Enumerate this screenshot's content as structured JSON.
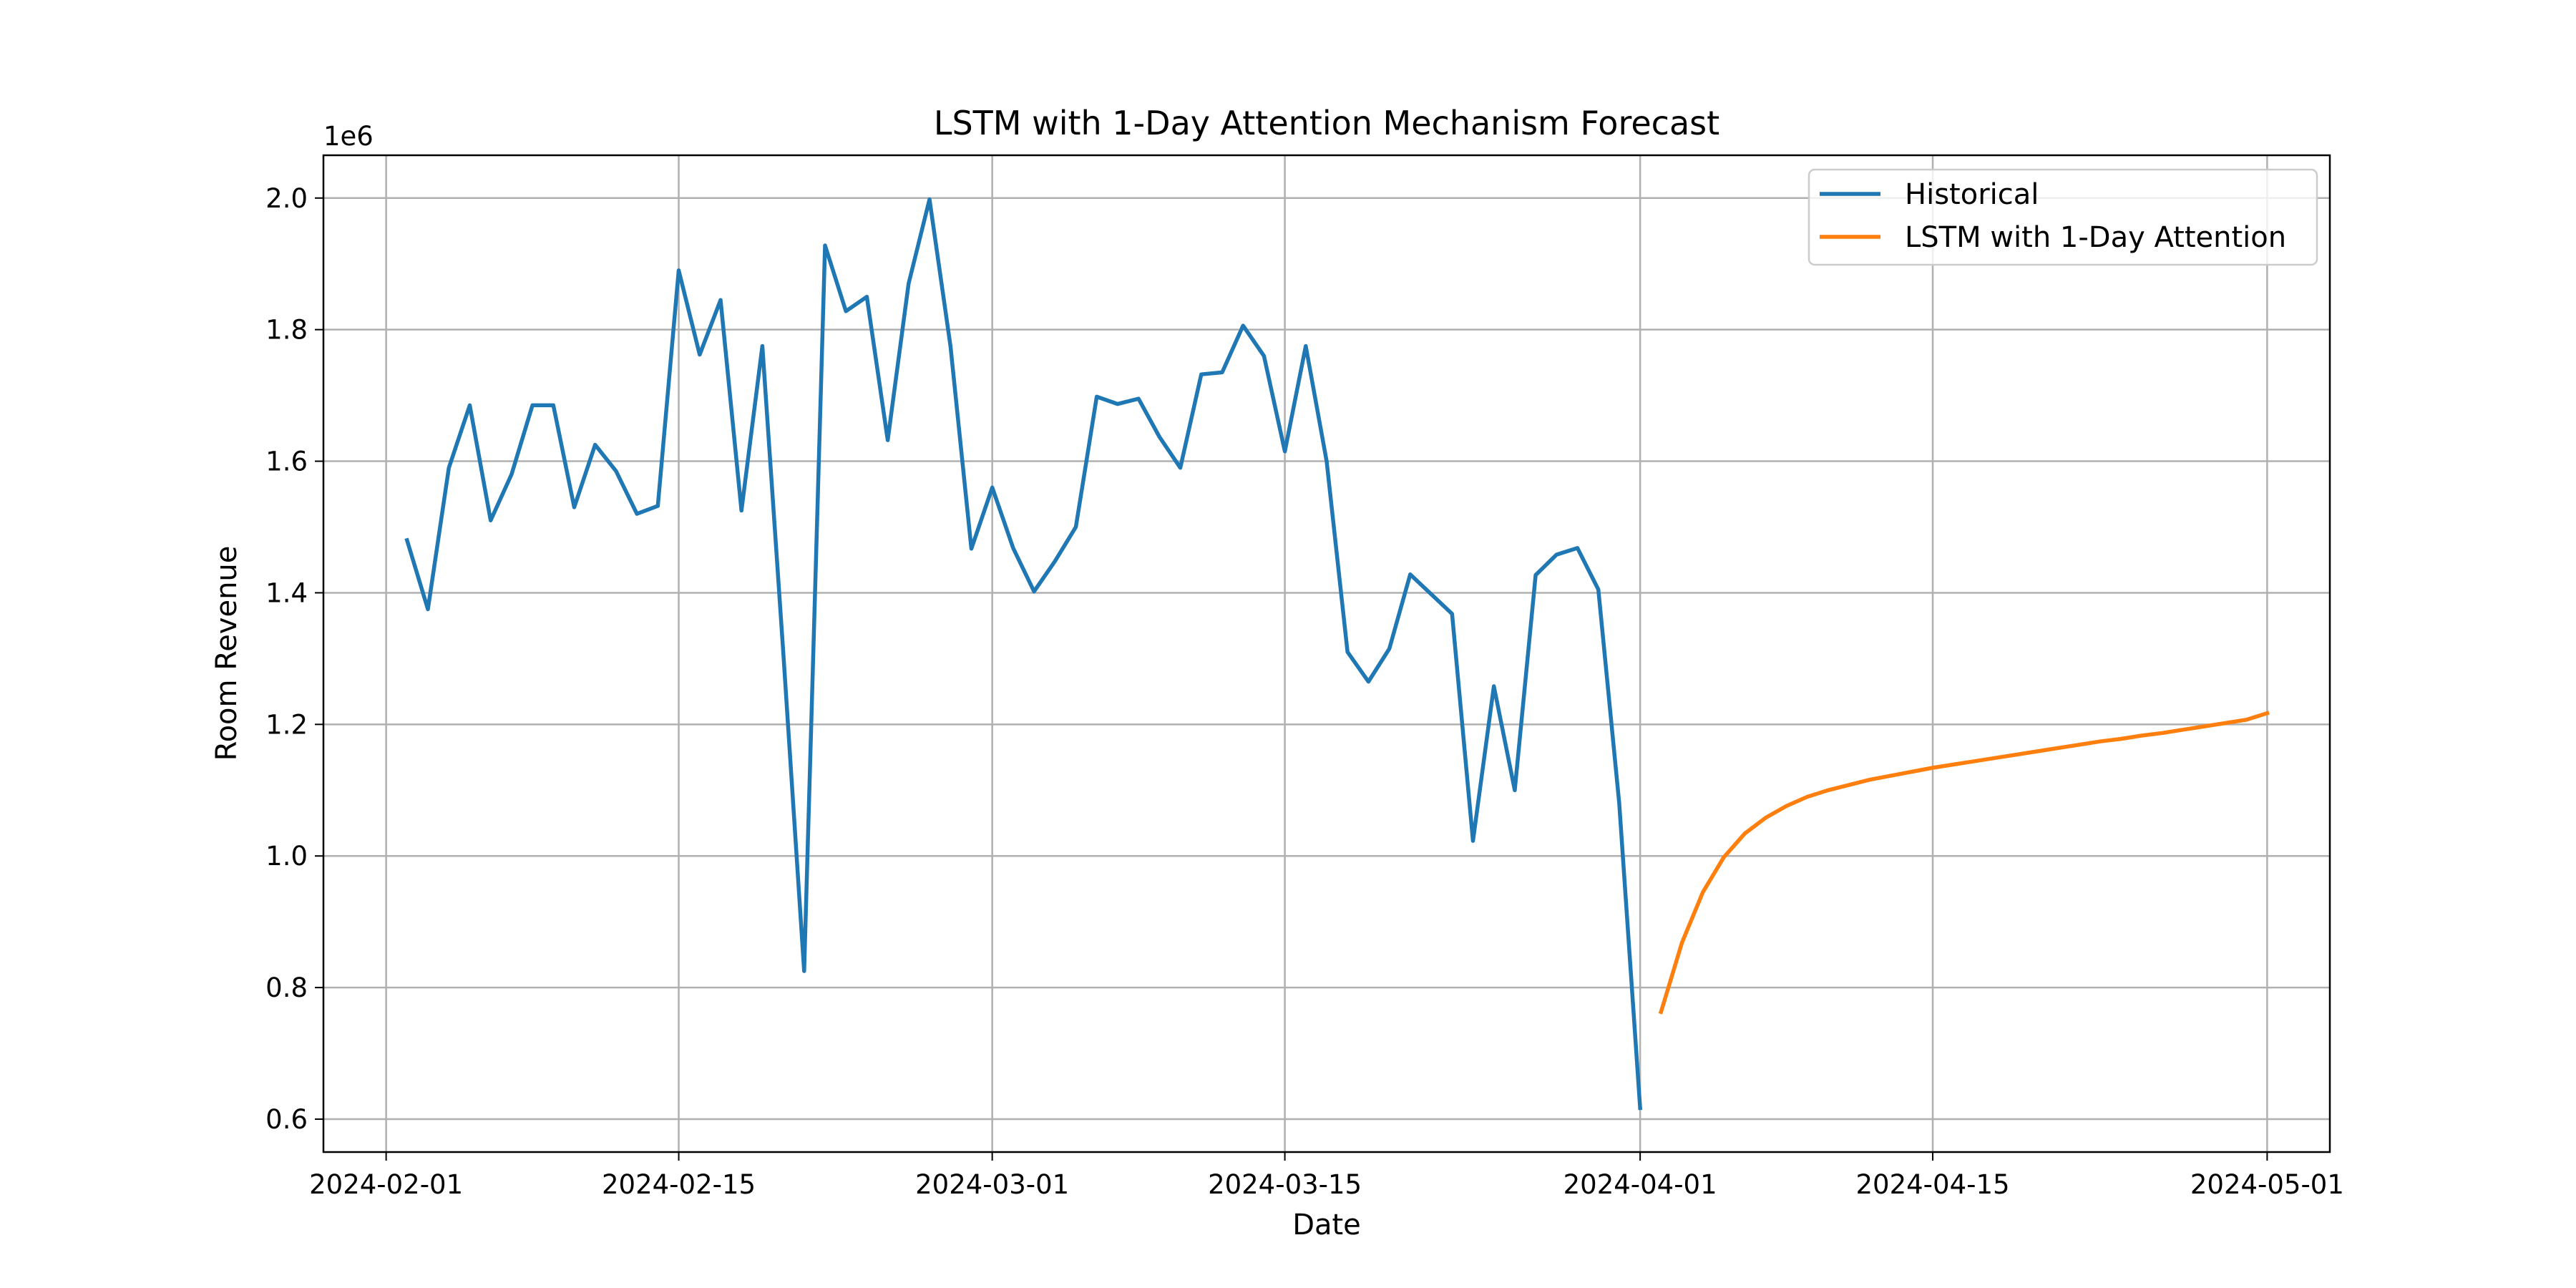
{
  "chart_data": {
    "type": "line",
    "title": "LSTM with 1-Day Attention Mechanism Forecast",
    "xlabel": "Date",
    "ylabel": "Room Revenue",
    "y_offset_label": "1e6",
    "y_multiplier": 1000000,
    "xlim": [
      "2024-01-29",
      "2024-05-04"
    ],
    "ylim": [
      550000,
      2065000
    ],
    "x_ticks": [
      "2024-02-01",
      "2024-02-15",
      "2024-03-01",
      "2024-03-15",
      "2024-04-01",
      "2024-04-15",
      "2024-05-01"
    ],
    "y_ticks": [
      600000,
      800000,
      1000000,
      1200000,
      1400000,
      1600000,
      1800000,
      2000000
    ],
    "y_tick_labels": [
      "0.6",
      "0.8",
      "1.0",
      "1.2",
      "1.4",
      "1.6",
      "1.8",
      "2.0"
    ],
    "grid": true,
    "legend_position": "top-right",
    "series": [
      {
        "name": "Historical",
        "color": "#1f77b4",
        "points": [
          [
            "2024-02-02",
            1480000
          ],
          [
            "2024-02-03",
            1375000
          ],
          [
            "2024-02-04",
            1590000
          ],
          [
            "2024-02-05",
            1685000
          ],
          [
            "2024-02-06",
            1510000
          ],
          [
            "2024-02-07",
            1580000
          ],
          [
            "2024-02-08",
            1685000
          ],
          [
            "2024-02-09",
            1685000
          ],
          [
            "2024-02-10",
            1530000
          ],
          [
            "2024-02-11",
            1625000
          ],
          [
            "2024-02-12",
            1585000
          ],
          [
            "2024-02-13",
            1520000
          ],
          [
            "2024-02-14",
            1532000
          ],
          [
            "2024-02-15",
            1890000
          ],
          [
            "2024-02-16",
            1762000
          ],
          [
            "2024-02-17",
            1845000
          ],
          [
            "2024-02-18",
            1525000
          ],
          [
            "2024-02-19",
            1775000
          ],
          [
            "2024-02-20",
            1310000
          ],
          [
            "2024-02-21",
            825000
          ],
          [
            "2024-02-22",
            1928000
          ],
          [
            "2024-02-23",
            1828000
          ],
          [
            "2024-02-24",
            1850000
          ],
          [
            "2024-02-25",
            1632000
          ],
          [
            "2024-02-26",
            1870000
          ],
          [
            "2024-02-27",
            1998000
          ],
          [
            "2024-02-28",
            1775000
          ],
          [
            "2024-02-29",
            1467000
          ],
          [
            "2024-03-01",
            1560000
          ],
          [
            "2024-03-02",
            1468000
          ],
          [
            "2024-03-03",
            1402000
          ],
          [
            "2024-03-04",
            1448000
          ],
          [
            "2024-03-05",
            1500000
          ],
          [
            "2024-03-06",
            1698000
          ],
          [
            "2024-03-07",
            1687000
          ],
          [
            "2024-03-08",
            1695000
          ],
          [
            "2024-03-09",
            1637000
          ],
          [
            "2024-03-10",
            1590000
          ],
          [
            "2024-03-11",
            1732000
          ],
          [
            "2024-03-12",
            1735000
          ],
          [
            "2024-03-13",
            1806000
          ],
          [
            "2024-03-14",
            1760000
          ],
          [
            "2024-03-15",
            1615000
          ],
          [
            "2024-03-16",
            1775000
          ],
          [
            "2024-03-17",
            1600000
          ],
          [
            "2024-03-18",
            1310000
          ],
          [
            "2024-03-19",
            1265000
          ],
          [
            "2024-03-20",
            1315000
          ],
          [
            "2024-03-21",
            1428000
          ],
          [
            "2024-03-22",
            1398000
          ],
          [
            "2024-03-23",
            1368000
          ],
          [
            "2024-03-24",
            1023000
          ],
          [
            "2024-03-25",
            1258000
          ],
          [
            "2024-03-26",
            1100000
          ],
          [
            "2024-03-27",
            1427000
          ],
          [
            "2024-03-28",
            1458000
          ],
          [
            "2024-03-29",
            1468000
          ],
          [
            "2024-03-30",
            1405000
          ],
          [
            "2024-03-31",
            1080000
          ],
          [
            "2024-04-01",
            617000
          ]
        ]
      },
      {
        "name": "LSTM with 1-Day Attention",
        "color": "#ff7f0e",
        "points": [
          [
            "2024-04-02",
            763000
          ],
          [
            "2024-04-03",
            868000
          ],
          [
            "2024-04-04",
            945000
          ],
          [
            "2024-04-05",
            998000
          ],
          [
            "2024-04-06",
            1034000
          ],
          [
            "2024-04-07",
            1058000
          ],
          [
            "2024-04-08",
            1076000
          ],
          [
            "2024-04-09",
            1090000
          ],
          [
            "2024-04-10",
            1100000
          ],
          [
            "2024-04-11",
            1108000
          ],
          [
            "2024-04-12",
            1116000
          ],
          [
            "2024-04-13",
            1122000
          ],
          [
            "2024-04-14",
            1128000
          ],
          [
            "2024-04-15",
            1134000
          ],
          [
            "2024-04-16",
            1139000
          ],
          [
            "2024-04-17",
            1144000
          ],
          [
            "2024-04-18",
            1149000
          ],
          [
            "2024-04-19",
            1154000
          ],
          [
            "2024-04-20",
            1159000
          ],
          [
            "2024-04-21",
            1164000
          ],
          [
            "2024-04-22",
            1169000
          ],
          [
            "2024-04-23",
            1174000
          ],
          [
            "2024-04-24",
            1178000
          ],
          [
            "2024-04-25",
            1183000
          ],
          [
            "2024-04-26",
            1187000
          ],
          [
            "2024-04-27",
            1192000
          ],
          [
            "2024-04-28",
            1197000
          ],
          [
            "2024-04-29",
            1202000
          ],
          [
            "2024-04-30",
            1207000
          ],
          [
            "2024-05-01",
            1217000
          ]
        ]
      }
    ]
  }
}
